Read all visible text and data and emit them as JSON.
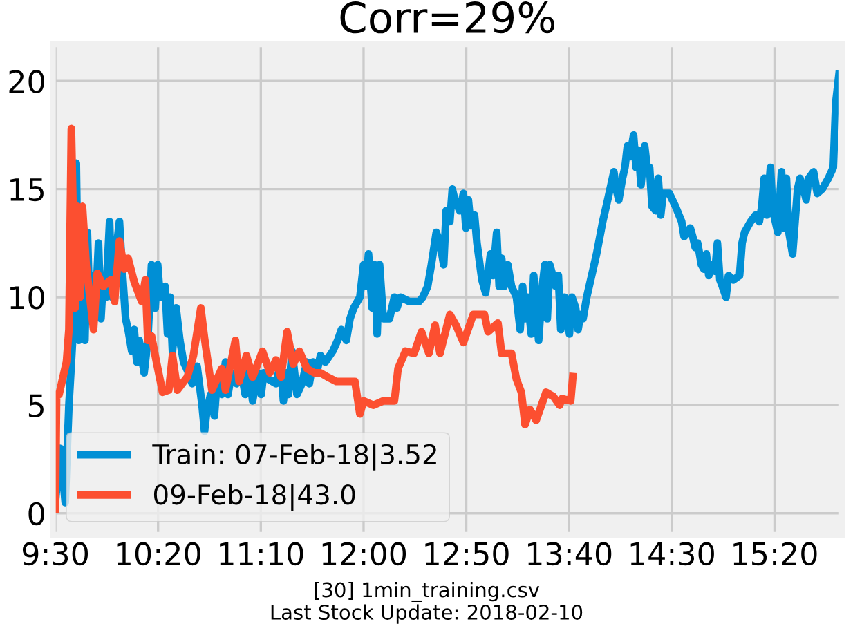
{
  "chart_data": {
    "type": "line",
    "title": "Corr=29%",
    "annotations": [
      "[30] 1min_training.csv",
      "Last Stock Update: 2018-02-10"
    ],
    "series": [
      {
        "name": "Train: 07-Feb-18|3.52",
        "color": "#008fd5",
        "x": [
          9.5,
          9.54,
          9.58,
          9.61,
          9.65,
          9.67,
          9.69,
          9.71,
          9.74,
          9.76,
          9.78,
          9.8,
          9.83,
          9.85,
          9.87,
          9.89,
          9.91,
          9.94,
          9.96,
          9.99,
          10.02,
          10.04,
          10.07,
          10.09,
          10.12,
          10.14,
          10.16,
          10.18,
          10.22,
          10.25,
          10.28,
          10.31,
          10.33,
          10.35,
          10.39,
          10.41,
          10.43,
          10.45,
          10.48,
          10.51,
          10.54,
          10.58,
          10.61,
          10.65,
          10.69,
          10.71,
          10.73,
          10.76,
          10.79,
          10.81,
          10.85,
          10.88,
          10.9,
          10.93,
          10.97,
          11.0,
          11.04,
          11.07,
          11.1,
          11.14,
          11.17,
          11.19,
          11.23,
          11.29,
          11.33,
          11.35,
          11.37,
          11.39,
          11.42,
          11.44,
          11.46,
          11.5,
          11.54,
          11.56,
          11.59,
          11.62,
          11.65,
          11.69,
          11.75,
          11.79,
          11.82,
          11.86,
          11.89,
          11.92,
          11.97,
          12.0,
          12.02,
          12.04,
          12.07,
          12.09,
          12.11,
          12.13,
          12.16,
          12.21,
          12.25,
          12.27,
          12.3,
          12.37,
          12.45,
          12.48,
          12.52,
          12.55,
          12.59,
          12.62,
          12.65,
          12.67,
          12.7,
          12.72,
          12.74,
          12.78,
          12.81,
          12.83,
          12.85,
          12.87,
          12.9,
          12.92,
          12.96,
          12.99,
          13.03,
          13.05,
          13.08,
          13.1,
          13.12,
          13.14,
          13.17,
          13.2,
          13.24,
          13.27,
          13.29,
          13.31,
          13.33,
          13.36,
          13.38,
          13.4,
          13.42,
          13.45,
          13.47,
          13.49,
          13.51,
          13.56,
          13.58,
          13.6,
          13.63,
          13.65,
          13.67,
          13.69,
          13.72,
          13.74,
          13.76,
          13.78,
          13.81,
          13.85,
          13.89,
          13.94,
          13.98,
          14.03,
          14.05,
          14.07,
          14.1,
          14.12,
          14.14,
          14.16,
          14.19,
          14.21,
          14.23,
          14.25,
          14.28,
          14.3,
          14.32,
          14.34,
          14.37,
          14.39,
          14.41,
          14.43,
          14.48,
          14.53,
          14.58,
          14.6,
          14.65,
          14.67,
          14.69,
          14.71,
          14.74,
          14.76,
          14.78,
          14.8,
          14.83,
          14.85,
          14.87,
          14.89,
          14.91,
          14.94,
          14.96,
          15.0,
          15.05,
          15.07,
          15.09,
          15.14,
          15.18,
          15.21,
          15.23,
          15.25,
          15.27,
          15.3,
          15.32,
          15.34,
          15.36,
          15.39,
          15.41,
          15.43,
          15.45,
          15.48,
          15.5,
          15.52,
          15.54,
          15.57,
          15.59,
          15.61,
          15.65,
          15.68,
          15.72,
          15.77,
          15.81,
          15.83,
          15.86
        ],
        "values": [
          0.5,
          3,
          0.5,
          5,
          9,
          16.2,
          8,
          12,
          8,
          13,
          9,
          11,
          10,
          12.5,
          9,
          11,
          10,
          13.5,
          10,
          12,
          13.5,
          11.5,
          9,
          8.5,
          7.5,
          8.5,
          7,
          8,
          6.5,
          8,
          11.5,
          9.5,
          11.5,
          10,
          10.5,
          8.3,
          10,
          7.5,
          9.5,
          8,
          7,
          6.5,
          6,
          6.8,
          5,
          3.8,
          4.8,
          5.5,
          4.5,
          6,
          5.5,
          7,
          5.5,
          6.5,
          6,
          6.8,
          5.5,
          6.8,
          5.2,
          6.5,
          5.5,
          6.5,
          6.2,
          6,
          7,
          5.2,
          6.5,
          5.5,
          7.5,
          6.5,
          5.5,
          6,
          7,
          6,
          7,
          6.5,
          7.3,
          7,
          7.5,
          8,
          8.5,
          8,
          9,
          9.5,
          10,
          11.5,
          10.5,
          12,
          9.5,
          11.5,
          8.3,
          11.5,
          9,
          9,
          10,
          9.5,
          10,
          9.8,
          9.8,
          10,
          10.5,
          11.5,
          13,
          12.5,
          11.5,
          14,
          13.5,
          15,
          14.5,
          14,
          14.8,
          13.2,
          14.5,
          13.3,
          13.8,
          12.5,
          10.8,
          10.2,
          12,
          11,
          13,
          10.5,
          11.8,
          10.5,
          11.5,
          10.5,
          10,
          8.5,
          10.5,
          9,
          10,
          8.3,
          11,
          9.5,
          8,
          10.5,
          11.5,
          9,
          11.5,
          10.5,
          11,
          8.5,
          10,
          9.5,
          8.3,
          10,
          9.5,
          8.5,
          9.2,
          9,
          10,
          11,
          12,
          13.5,
          14.5,
          15.8,
          15,
          14.5,
          15.5,
          16,
          17,
          16.5,
          17.5,
          16,
          16.8,
          15.2,
          17,
          16,
          16,
          14.2,
          14,
          15.5,
          13.8,
          14.8,
          14.8,
          14.2,
          13.5,
          12.8,
          13.2,
          12.8,
          12.3,
          12.5,
          11.5,
          11.3,
          12,
          11,
          11.5,
          11.2,
          12.5,
          10.8,
          10.5,
          10,
          11,
          10.8,
          11,
          12.5,
          13,
          13.5,
          13.8,
          13.5,
          14.2,
          15.5,
          13.8,
          16,
          14,
          13.5,
          13,
          15.8,
          13.2,
          15.5,
          13,
          12,
          13.5,
          15,
          15.5,
          15,
          14.5,
          15.5,
          15.8,
          14.8,
          15,
          15.5,
          16,
          19,
          20.5
        ]
      },
      {
        "name": "09-Feb-18|43.0",
        "color": "#fc4f30",
        "x": [
          9.5,
          9.51,
          9.53,
          9.59,
          9.61,
          9.63,
          9.66,
          9.68,
          9.7,
          9.72,
          9.75,
          9.81,
          9.84,
          9.89,
          9.95,
          9.98,
          10.02,
          10.06,
          10.09,
          10.14,
          10.2,
          10.23,
          10.25,
          10.28,
          10.32,
          10.37,
          10.42,
          10.45,
          10.49,
          10.57,
          10.62,
          10.68,
          10.71,
          10.77,
          10.85,
          10.88,
          10.96,
          10.99,
          11.05,
          11.1,
          11.18,
          11.24,
          11.29,
          11.33,
          11.38,
          11.43,
          11.48,
          11.54,
          11.6,
          11.65,
          11.71,
          11.78,
          11.85,
          11.93,
          11.97,
          12.0,
          12.08,
          12.16,
          12.25,
          12.28,
          12.34,
          12.41,
          12.47,
          12.53,
          12.58,
          12.62,
          12.7,
          12.75,
          12.81,
          12.89,
          12.98,
          13.01,
          13.09,
          13.12,
          13.2,
          13.24,
          13.28,
          13.31,
          13.35,
          13.4,
          13.48,
          13.54,
          13.59,
          13.61,
          13.68,
          13.7
        ],
        "values": [
          0,
          5.5,
          5.5,
          7,
          8.5,
          17.8,
          9.5,
          14.2,
          10,
          14.2,
          11.5,
          8.5,
          11.1,
          10.5,
          10.8,
          9.8,
          12.6,
          11.3,
          11.8,
          10.7,
          9.8,
          10.8,
          8,
          8.2,
          7,
          5.6,
          5.7,
          7.3,
          5.7,
          6.3,
          7.3,
          9.5,
          8.1,
          5.7,
          6.7,
          5.7,
          8,
          6.1,
          7.3,
          6.3,
          7.5,
          6.5,
          7.1,
          6.3,
          8.4,
          6.9,
          7.5,
          6.7,
          6.5,
          6.5,
          6.3,
          6.1,
          6.1,
          6.1,
          4.6,
          5.2,
          5,
          5.2,
          5.2,
          6.7,
          7.5,
          7.4,
          8.4,
          7.4,
          8.7,
          7.4,
          9.2,
          8.7,
          7.9,
          9.2,
          9.2,
          8.4,
          8.8,
          7.4,
          7.4,
          6.2,
          5.6,
          4.1,
          4.8,
          4.3,
          5.6,
          5.4,
          5,
          5.3,
          5.2,
          6.5
        ]
      }
    ],
    "xlim": [
      9.48,
      15.88
    ],
    "xticks": [
      {
        "value": 9.5,
        "label": "9:30"
      },
      {
        "value": 10.3333,
        "label": "10:20"
      },
      {
        "value": 11.1667,
        "label": "11:10"
      },
      {
        "value": 12.0,
        "label": "12:00"
      },
      {
        "value": 12.8333,
        "label": "12:50"
      },
      {
        "value": 13.6667,
        "label": "13:40"
      },
      {
        "value": 14.5,
        "label": "14:30"
      },
      {
        "value": 15.3333,
        "label": "15:20"
      }
    ],
    "ylim": [
      -1.0,
      21.7
    ],
    "yticks": [
      0,
      5,
      10,
      15,
      20
    ],
    "grid": true,
    "legend": "bottom left",
    "marker": "none",
    "line_style": "solid"
  }
}
